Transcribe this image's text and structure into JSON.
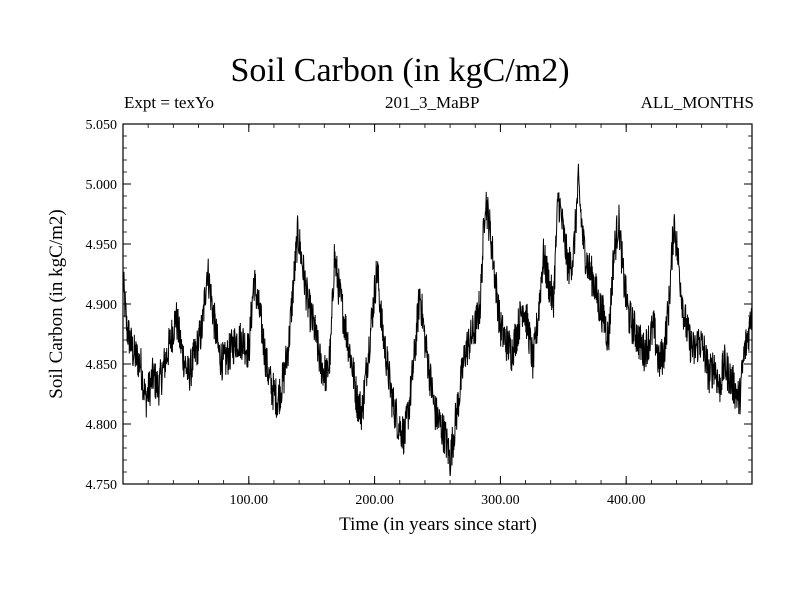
{
  "chart_data": {
    "type": "line",
    "title": "Soil Carbon (in kgC/m2)",
    "subtitle_left": "Expt = texYo",
    "subtitle_center": "201_3_MaBP",
    "subtitle_right": "ALL_MONTHS",
    "xlabel": "Time (in years since start)",
    "ylabel": "Soil Carbon (in kgC/m2)",
    "xlim": [
      0,
      500
    ],
    "ylim": [
      4.75,
      5.05
    ],
    "xticks": [
      100,
      200,
      300,
      400
    ],
    "xtick_labels": [
      "100.00",
      "200.00",
      "300.00",
      "400.00"
    ],
    "yticks": [
      4.75,
      4.8,
      4.85,
      4.9,
      4.95,
      5.0,
      5.05
    ],
    "ytick_labels": [
      "4.750",
      "4.800",
      "4.850",
      "4.900",
      "4.950",
      "5.000",
      "5.050"
    ],
    "grid": false,
    "series": [
      {
        "color": "#000000",
        "x": [
          0,
          3,
          8,
          14,
          18,
          24,
          28,
          33,
          38,
          42,
          47,
          52,
          58,
          63,
          67,
          72,
          76,
          80,
          85,
          90,
          95,
          100,
          104,
          109,
          114,
          118,
          123,
          128,
          132,
          135,
          139,
          143,
          147,
          152,
          157,
          162,
          165,
          168,
          172,
          177,
          182,
          186,
          190,
          194,
          198,
          202,
          206,
          210,
          214,
          219,
          224,
          228,
          232,
          236,
          240,
          244,
          248,
          252,
          256,
          260,
          264,
          268,
          272,
          276,
          280,
          284,
          288,
          292,
          296,
          300,
          304,
          309,
          314,
          318,
          322,
          326,
          330,
          334,
          338,
          342,
          346,
          350,
          354,
          358,
          362,
          366,
          370,
          374,
          378,
          382,
          386,
          390,
          394,
          398,
          402,
          406,
          410,
          414,
          418,
          422,
          426,
          430,
          434,
          438,
          442,
          446,
          450,
          454,
          458,
          462,
          466,
          470,
          474,
          478,
          482,
          486,
          490,
          494,
          498,
          500
        ],
        "y": [
          4.92,
          4.88,
          4.86,
          4.85,
          4.82,
          4.84,
          4.83,
          4.85,
          4.87,
          4.89,
          4.86,
          4.84,
          4.86,
          4.88,
          4.93,
          4.89,
          4.86,
          4.85,
          4.86,
          4.87,
          4.87,
          4.86,
          4.92,
          4.89,
          4.85,
          4.83,
          4.82,
          4.84,
          4.87,
          4.91,
          4.96,
          4.93,
          4.9,
          4.88,
          4.85,
          4.84,
          4.86,
          4.94,
          4.91,
          4.88,
          4.85,
          4.82,
          4.81,
          4.85,
          4.89,
          4.93,
          4.88,
          4.85,
          4.82,
          4.8,
          4.79,
          4.82,
          4.86,
          4.91,
          4.87,
          4.84,
          4.81,
          4.8,
          4.79,
          4.77,
          4.8,
          4.83,
          4.86,
          4.87,
          4.88,
          4.9,
          4.99,
          4.96,
          4.92,
          4.88,
          4.87,
          4.86,
          4.88,
          4.9,
          4.88,
          4.85,
          4.89,
          4.94,
          4.92,
          4.9,
          4.99,
          4.96,
          4.93,
          4.94,
          5.0,
          4.95,
          4.93,
          4.92,
          4.9,
          4.89,
          4.87,
          4.94,
          4.97,
          4.92,
          4.89,
          4.88,
          4.87,
          4.86,
          4.87,
          4.88,
          4.85,
          4.86,
          4.9,
          4.97,
          4.93,
          4.89,
          4.87,
          4.86,
          4.87,
          4.86,
          4.84,
          4.85,
          4.83,
          4.85,
          4.84,
          4.83,
          4.82,
          4.86,
          4.88,
          4.9
        ]
      }
    ]
  }
}
